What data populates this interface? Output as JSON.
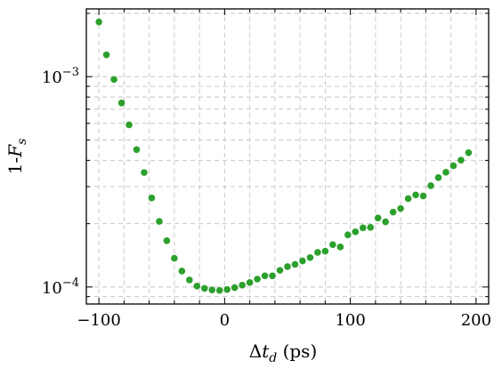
{
  "chart_data": {
    "type": "scatter",
    "title": "",
    "xlabel": "Δt_d (ps)",
    "ylabel": "1-F_s",
    "xscale": "linear",
    "yscale": "log",
    "xlim": [
      -110,
      210
    ],
    "ylim": [
      8.3e-05,
      0.0021
    ],
    "grid": true,
    "marker_color": "#2ca02c",
    "x_ticks": [
      -100,
      0,
      100,
      200
    ],
    "x_tick_labels": [
      "−100",
      "0",
      "100",
      "200"
    ],
    "y_ticks": [
      0.0001,
      0.001
    ],
    "y_tick_labels": [
      {
        "base": "10",
        "exp": "−4"
      },
      {
        "base": "10",
        "exp": "−3"
      }
    ],
    "series": [
      {
        "x": [
          -100,
          -94,
          -88,
          -82,
          -76,
          -70,
          -64,
          -58,
          -52,
          -46,
          -40,
          -34,
          -28,
          -22,
          -16,
          -10,
          -4,
          2,
          8,
          14,
          20,
          26,
          32,
          38,
          44,
          50,
          56,
          62,
          68,
          74,
          80,
          86,
          92,
          98,
          104,
          110,
          116,
          122,
          128,
          134,
          140,
          146,
          152,
          158,
          164,
          170,
          176,
          182,
          188,
          194
        ],
        "y": [
          0.00182,
          0.00127,
          0.00097,
          0.00075,
          0.00059,
          0.00045,
          0.00035,
          0.000265,
          0.000205,
          0.000166,
          0.000137,
          0.000119,
          0.000108,
          0.000101,
          9.85e-05,
          9.68e-05,
          9.63e-05,
          9.73e-05,
          9.93e-05,
          0.000102,
          0.000105,
          0.000109,
          0.000113,
          0.000113,
          0.00012,
          0.000125,
          0.000128,
          0.000133,
          0.000138,
          0.000146,
          0.000148,
          0.000159,
          0.000155,
          0.000177,
          0.000183,
          0.000191,
          0.000192,
          0.000213,
          0.000204,
          0.000227,
          0.000236,
          0.000263,
          0.000274,
          0.000271,
          0.000303,
          0.000331,
          0.000351,
          0.000377,
          0.000401,
          0.000435
        ]
      }
    ]
  }
}
